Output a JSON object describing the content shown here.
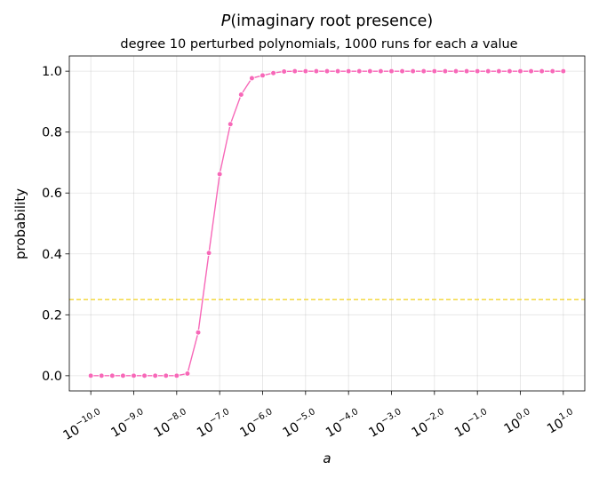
{
  "chart_data": {
    "type": "line",
    "title_prefix": "P",
    "title_rest": "(imaginary root presence)",
    "subtitle_main": "degree 10 perturbed polynomials, 1000 runs for each ",
    "subtitle_var": "a",
    "subtitle_end": " value",
    "xlabel": "a",
    "ylabel": "probability",
    "x_scale": "log",
    "xlim_exp": [
      -10.5,
      1.5
    ],
    "ylim": [
      -0.05,
      1.05
    ],
    "x_ticks_exp": [
      -10,
      -9,
      -8,
      -7,
      -6,
      -5,
      -4,
      -3,
      -2,
      -1,
      0,
      1
    ],
    "x_tick_labels": [
      "−10.0",
      "−9.0",
      "−8.0",
      "−7.0",
      "−6.0",
      "−5.0",
      "−4.0",
      "−3.0",
      "−2.0",
      "−1.0",
      "0.0",
      "1.0"
    ],
    "x_tick_base": "10",
    "y_ticks": [
      0.0,
      0.2,
      0.4,
      0.6,
      0.8,
      1.0
    ],
    "y_tick_labels": [
      "0.0",
      "0.2",
      "0.4",
      "0.6",
      "0.8",
      "1.0"
    ],
    "grid": true,
    "series": [
      {
        "color": "#f768b8",
        "x_exp": [
          -10.0,
          -9.75,
          -9.5,
          -9.25,
          -9.0,
          -8.75,
          -8.5,
          -8.25,
          -8.0,
          -7.75,
          -7.5,
          -7.25,
          -7.0,
          -6.75,
          -6.5,
          -6.25,
          -6.0,
          -5.75,
          -5.5,
          -5.25,
          -5.0,
          -4.75,
          -4.5,
          -4.25,
          -4.0,
          -3.75,
          -3.5,
          -3.25,
          -3.0,
          -2.75,
          -2.5,
          -2.25,
          -2.0,
          -1.75,
          -1.5,
          -1.25,
          -1.0,
          -0.75,
          -0.5,
          -0.25,
          0.0,
          0.25,
          0.5,
          0.75,
          1.0
        ],
        "y": [
          0.0,
          0.0,
          0.0,
          0.0,
          0.0,
          0.0,
          0.0,
          0.0,
          0.0,
          0.007,
          0.142,
          0.403,
          0.662,
          0.826,
          0.923,
          0.977,
          0.986,
          0.994,
          0.999,
          1.0,
          1.0,
          1.0,
          1.0,
          1.0,
          1.0,
          1.0,
          1.0,
          1.0,
          1.0,
          1.0,
          1.0,
          1.0,
          1.0,
          1.0,
          1.0,
          1.0,
          1.0,
          1.0,
          1.0,
          1.0,
          1.0,
          1.0,
          1.0,
          1.0,
          1.0
        ]
      }
    ],
    "reference_line": {
      "y": 0.25,
      "color": "#f2d630",
      "style": "dashed"
    }
  }
}
